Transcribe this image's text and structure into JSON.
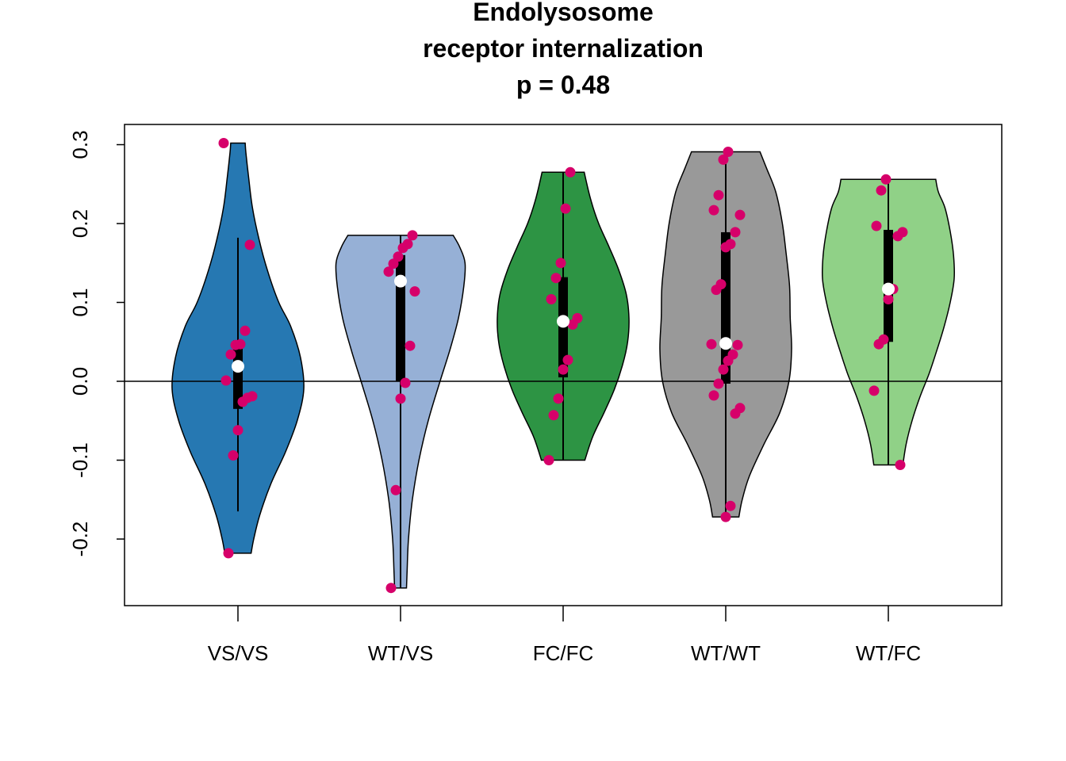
{
  "chart_data": {
    "type": "violin",
    "title_lines": [
      "Endolysosome",
      "receptor internalization",
      "p = 0.48"
    ],
    "xlabel": "",
    "ylabel": "",
    "ylim": [
      -0.285,
      0.325
    ],
    "yticks": [
      -0.2,
      -0.1,
      0.0,
      0.1,
      0.2,
      0.3
    ],
    "ytick_labels": [
      "-0.2",
      "-0.1",
      "0.0",
      "0.1",
      "0.2",
      "0.3"
    ],
    "reference_line_y": 0.0,
    "point_color": "#d6006a",
    "median_color": "#ffffff",
    "groups": [
      {
        "label": "VS/VS",
        "color": "#2678b2",
        "range": [
          -0.218,
          0.302
        ],
        "whiskers": [
          -0.165,
          0.182
        ],
        "iqr": [
          -0.035,
          0.052
        ],
        "median": 0.019,
        "density": [
          [
            -0.218,
            0.2
          ],
          [
            -0.2,
            0.24
          ],
          [
            -0.17,
            0.33
          ],
          [
            -0.13,
            0.5
          ],
          [
            -0.09,
            0.72
          ],
          [
            -0.05,
            0.9
          ],
          [
            -0.01,
            1.0
          ],
          [
            0.03,
            0.95
          ],
          [
            0.07,
            0.8
          ],
          [
            0.1,
            0.62
          ],
          [
            0.14,
            0.45
          ],
          [
            0.18,
            0.32
          ],
          [
            0.22,
            0.22
          ],
          [
            0.26,
            0.16
          ],
          [
            0.29,
            0.12
          ],
          [
            0.302,
            0.11
          ]
        ],
        "points": [
          0.302,
          0.173,
          0.064,
          0.047,
          0.046,
          0.034,
          0.001,
          -0.019,
          -0.021,
          -0.026,
          -0.062,
          -0.094,
          -0.218
        ]
      },
      {
        "label": "WT/VS",
        "color": "#96b0d6",
        "range": [
          -0.262,
          0.185
        ],
        "whiskers": [
          -0.262,
          0.185
        ],
        "iqr": [
          0.0,
          0.16
        ],
        "median": 0.127,
        "density": [
          [
            -0.262,
            0.09
          ],
          [
            -0.24,
            0.1
          ],
          [
            -0.2,
            0.12
          ],
          [
            -0.15,
            0.18
          ],
          [
            -0.1,
            0.28
          ],
          [
            -0.05,
            0.42
          ],
          [
            0.0,
            0.6
          ],
          [
            0.04,
            0.75
          ],
          [
            0.08,
            0.88
          ],
          [
            0.12,
            0.96
          ],
          [
            0.15,
            0.98
          ],
          [
            0.17,
            0.9
          ],
          [
            0.185,
            0.8
          ]
        ],
        "points": [
          0.185,
          0.174,
          0.169,
          0.158,
          0.149,
          0.139,
          0.114,
          0.045,
          -0.002,
          -0.022,
          -0.138,
          -0.262
        ]
      },
      {
        "label": "FC/FC",
        "color": "#2d9444",
        "range": [
          -0.1,
          0.265
        ],
        "whiskers": [
          -0.1,
          0.265
        ],
        "iqr": [
          0.005,
          0.132
        ],
        "median": 0.076,
        "density": [
          [
            -0.1,
            0.33
          ],
          [
            -0.07,
            0.45
          ],
          [
            -0.04,
            0.62
          ],
          [
            -0.01,
            0.78
          ],
          [
            0.02,
            0.9
          ],
          [
            0.05,
            0.98
          ],
          [
            0.08,
            1.0
          ],
          [
            0.11,
            0.96
          ],
          [
            0.14,
            0.85
          ],
          [
            0.17,
            0.7
          ],
          [
            0.2,
            0.54
          ],
          [
            0.23,
            0.42
          ],
          [
            0.265,
            0.32
          ]
        ],
        "points": [
          0.265,
          0.219,
          0.15,
          0.131,
          0.104,
          0.08,
          0.072,
          0.027,
          0.015,
          -0.022,
          -0.043,
          -0.1
        ]
      },
      {
        "label": "WT/WT",
        "color": "#999999",
        "range": [
          -0.172,
          0.291
        ],
        "whiskers": [
          -0.172,
          0.291
        ],
        "iqr": [
          -0.003,
          0.189
        ],
        "median": 0.048,
        "density": [
          [
            -0.172,
            0.2
          ],
          [
            -0.15,
            0.25
          ],
          [
            -0.12,
            0.36
          ],
          [
            -0.08,
            0.58
          ],
          [
            -0.04,
            0.82
          ],
          [
            0.0,
            0.96
          ],
          [
            0.04,
            1.0
          ],
          [
            0.08,
            0.98
          ],
          [
            0.12,
            0.97
          ],
          [
            0.16,
            0.92
          ],
          [
            0.2,
            0.86
          ],
          [
            0.24,
            0.76
          ],
          [
            0.27,
            0.62
          ],
          [
            0.291,
            0.52
          ]
        ],
        "points": [
          0.291,
          0.281,
          0.236,
          0.217,
          0.211,
          0.189,
          0.174,
          0.17,
          0.123,
          0.116,
          0.047,
          0.046,
          0.034,
          0.026,
          0.015,
          -0.003,
          -0.018,
          -0.034,
          -0.041,
          -0.158,
          -0.172
        ]
      },
      {
        "label": "WT/FC",
        "color": "#90d187",
        "range": [
          -0.106,
          0.256
        ],
        "whiskers": [
          -0.106,
          0.256
        ],
        "iqr": [
          0.05,
          0.192
        ],
        "median": 0.117,
        "density": [
          [
            -0.106,
            0.22
          ],
          [
            -0.08,
            0.27
          ],
          [
            -0.05,
            0.36
          ],
          [
            -0.02,
            0.48
          ],
          [
            0.01,
            0.62
          ],
          [
            0.04,
            0.74
          ],
          [
            0.07,
            0.85
          ],
          [
            0.1,
            0.94
          ],
          [
            0.13,
            1.0
          ],
          [
            0.16,
            0.99
          ],
          [
            0.19,
            0.94
          ],
          [
            0.22,
            0.86
          ],
          [
            0.24,
            0.76
          ],
          [
            0.256,
            0.72
          ]
        ],
        "points": [
          0.256,
          0.242,
          0.197,
          0.189,
          0.184,
          0.117,
          0.104,
          0.053,
          0.047,
          -0.012,
          -0.106
        ]
      }
    ]
  }
}
